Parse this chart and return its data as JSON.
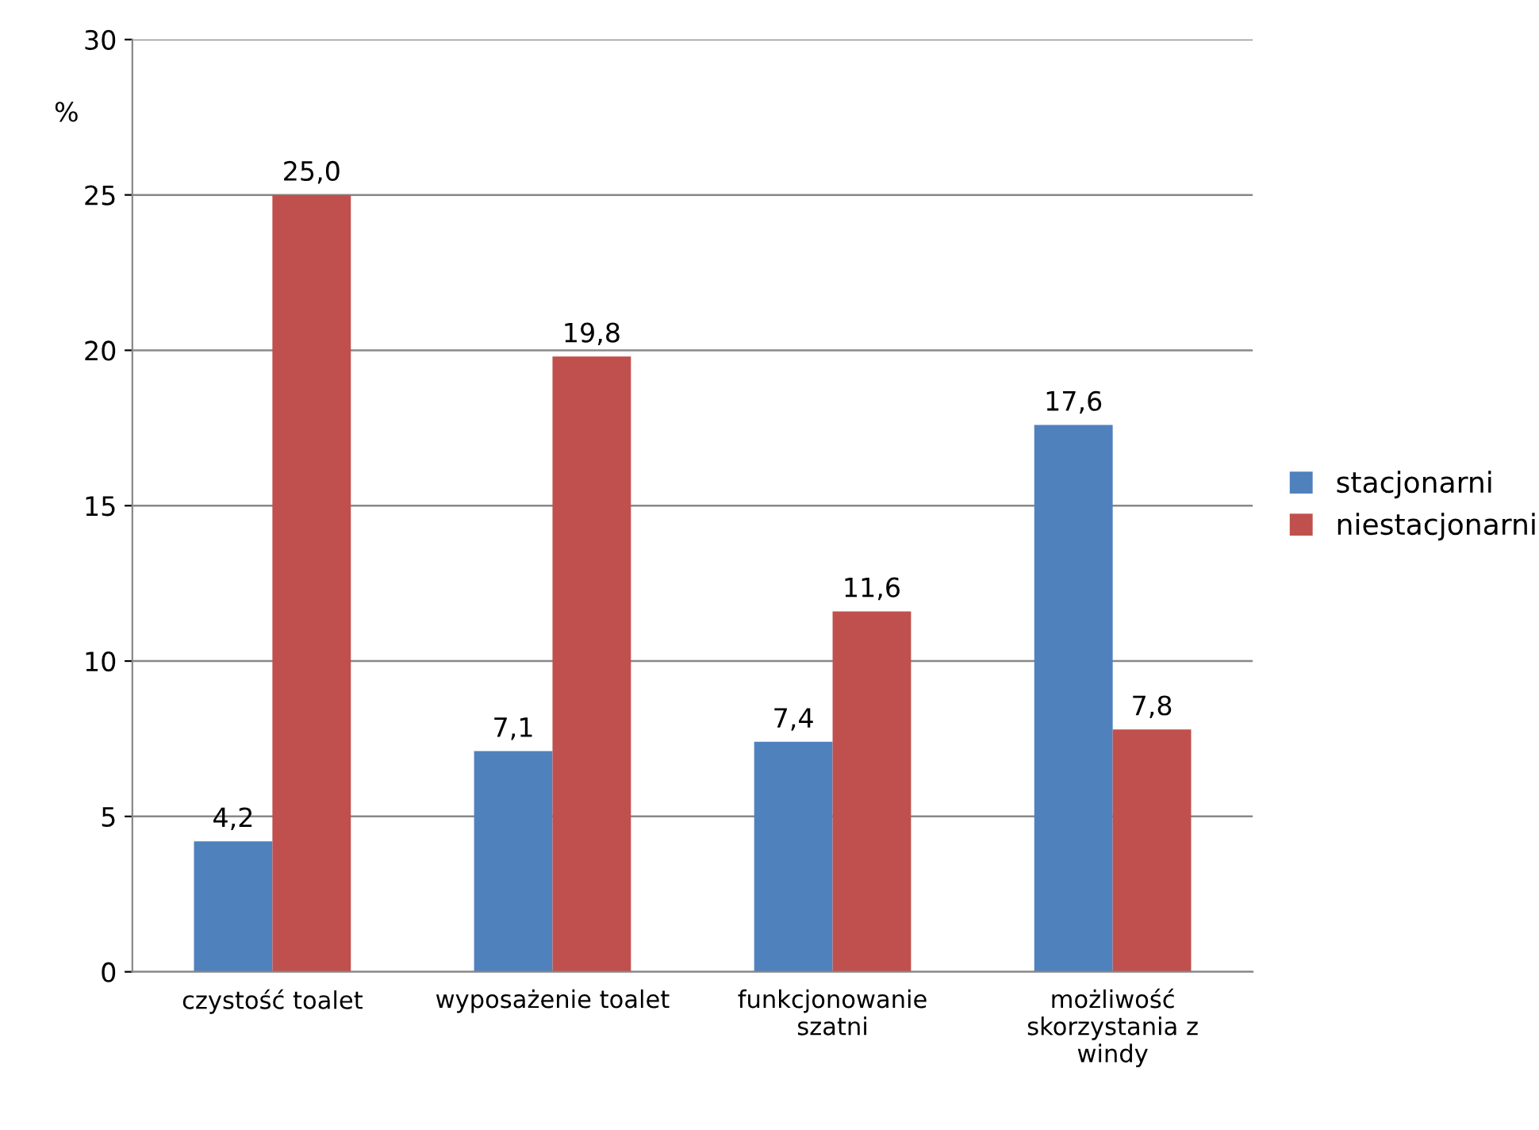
{
  "chart_data": {
    "type": "bar",
    "ylabel": "%",
    "categories": [
      "czystość toalet",
      "wyposażenie toalet",
      "funkcjonowanie\nszatni",
      "możliwość\nskorzystania z\nwindy"
    ],
    "series": [
      {
        "name": "stacjonarni",
        "color": "#4f81bd",
        "values": [
          4.2,
          7.1,
          7.4,
          17.6
        ],
        "value_labels": [
          "4,2",
          "7,1",
          "7,4",
          "17,6"
        ]
      },
      {
        "name": "niestacjonarni",
        "color": "#c0504d",
        "values": [
          25.0,
          19.8,
          11.6,
          7.8
        ],
        "value_labels": [
          "25,0",
          "19,8",
          "11,6",
          "7,8"
        ]
      }
    ],
    "ylim": [
      0,
      30
    ],
    "yticks": [
      0,
      5,
      10,
      15,
      20,
      25,
      30
    ],
    "grid": "y",
    "legend": "right"
  }
}
